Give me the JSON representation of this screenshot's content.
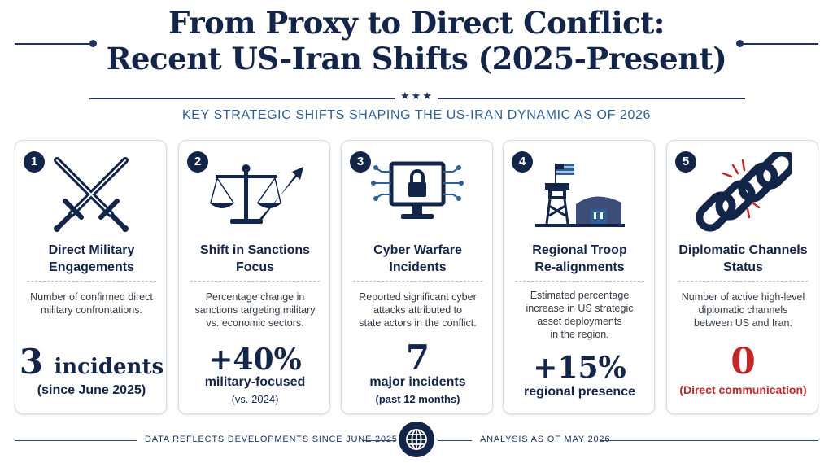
{
  "title": {
    "line1": "From Proxy to Direct Conflict:",
    "line2": "Recent US-Iran Shifts (2025-Present)"
  },
  "subtitle": "KEY STRATEGIC SHIFTS SHAPING THE US-IRAN DYNAMIC AS OF 2026",
  "cards": [
    {
      "number": "1",
      "icon": "crossed-swords-icon",
      "title_line1": "Direct Military",
      "title_line2": "Engagements",
      "desc": [
        "Number of confirmed direct",
        "military confrontations."
      ],
      "value": "3",
      "value_unit": "incidents",
      "caption": "(since June 2025)"
    },
    {
      "number": "2",
      "icon": "scales-arrow-icon",
      "title_line1": "Shift in Sanctions",
      "title_line2": "Focus",
      "desc": [
        "Percentage change in",
        "sanctions targeting military",
        "vs. economic sectors."
      ],
      "value": "+40%",
      "caption": "military-focused",
      "caption2": "(vs. 2024)"
    },
    {
      "number": "3",
      "icon": "monitor-lock-icon",
      "title_line1": "Cyber Warfare",
      "title_line2": "Incidents",
      "desc": [
        "Reported significant cyber",
        "attacks attributed to",
        "state actors in the conflict."
      ],
      "value": "7",
      "caption": "major incidents",
      "caption2": "(past 12 months)"
    },
    {
      "number": "4",
      "icon": "watchtower-hangar-icon",
      "title_line1": "Regional Troop",
      "title_line2": "Re-alignments",
      "desc": [
        "Estimated percentage",
        "increase in US strategic",
        "asset deployments",
        "in the region."
      ],
      "value": "+15%",
      "caption": "regional presence"
    },
    {
      "number": "5",
      "icon": "broken-chain-icon",
      "title_line1": "Diplomatic Channels",
      "title_line2": "Status",
      "desc": [
        "Number of active high-level",
        "diplomatic channels",
        "between US and Iran."
      ],
      "value": "0",
      "caption": "(Direct communication)"
    }
  ],
  "footer": {
    "left": "DATA REFLECTS DEVELOPMENTS SINCE JUNE 2025",
    "right": "ANALYSIS AS OF MAY 2026",
    "icon": "globe-icon"
  },
  "colors": {
    "navy": "#14254a",
    "accent_blue": "#2e5f94",
    "alert_red": "#c0282a"
  }
}
